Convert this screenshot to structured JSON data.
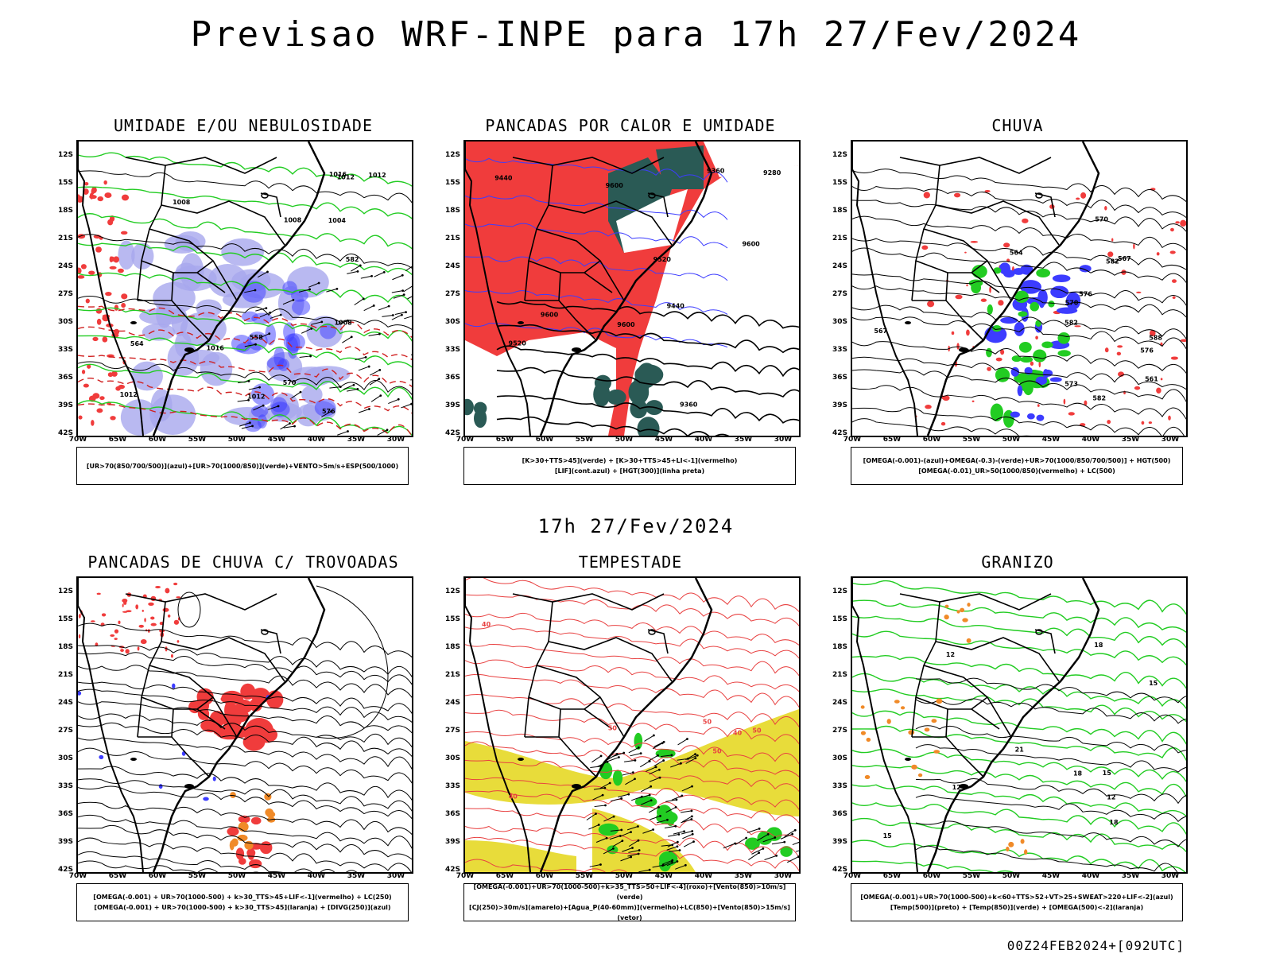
{
  "title": "Previsao WRF-INPE  para 17h 27/Fev/2024",
  "mid_date": "17h 27/Fev/2024",
  "footer_stamp": "00Z24FEB2024+[092UTC]",
  "lat_labels": [
    "12S",
    "15S",
    "18S",
    "21S",
    "24S",
    "27S",
    "30S",
    "33S",
    "36S",
    "39S",
    "42S"
  ],
  "lon_labels": [
    "70W",
    "65W",
    "60W",
    "55W",
    "50W",
    "45W",
    "40W",
    "35W",
    "30W"
  ],
  "colors": {
    "red": "#f03c3c",
    "blue": "#3c3cff",
    "green": "#22cc22",
    "lavender": "#a8a8ee",
    "teal": "#2a5a55",
    "yellow": "#e8dc3a",
    "orange": "#f08a28"
  },
  "panels": [
    {
      "id": "umidade",
      "title": "UMIDADE E/OU NEBULOSIDADE",
      "legend": [
        "[UR>70(850/700/500)](azul)+[UR>70(1000/850)](verde)+VENTO>5m/s+ESP(500/1000)"
      ],
      "contour_labels": [
        "1012",
        "1008",
        "1012",
        "1008",
        "1004",
        "1012",
        "1016",
        "576",
        "570",
        "564",
        "558",
        "1008",
        "1012",
        "1016",
        "582"
      ]
    },
    {
      "id": "pancadas-calor",
      "title": "PANCADAS POR CALOR E UMIDADE",
      "legend": [
        "[K>30+TTS>45](verde)  +  [K>30+TTS>45+LI<-1](vermelho)",
        "[LIF](cont.azul)  +  [HGT(300)](linha preta)"
      ],
      "contour_labels": [
        "9600",
        "9600",
        "9600",
        "9520",
        "9440",
        "9360",
        "9280",
        "9520",
        "9440",
        "9360",
        "9600"
      ]
    },
    {
      "id": "chuva",
      "title": "CHUVA",
      "legend": [
        "[OMEGA(-0.001)-(azul)+OMEGA(-0.3)-(verde)+UR>70(1000/850/700/500)]  +  HGT(500)",
        "[OMEGA(-0.01)_UR>50(1000/850)(vermelho)  +  LC(500)"
      ],
      "contour_labels": [
        "582",
        "588",
        "582",
        "576",
        "573",
        "570",
        "567",
        "564",
        "561",
        "582",
        "576",
        "570",
        "567"
      ]
    },
    {
      "id": "pancadas-trovoadas",
      "title": "PANCADAS DE CHUVA C/ TROVOADAS",
      "legend": [
        "[OMEGA(-0.001)  +  UR>70(1000-500)  +  k>30_TTS>45+LIF<-1](vermelho)  +  LC(250)",
        "[OMEGA(-0.001)  +  UR>70(1000-500)  +  k>30_TTS>45](laranja)  +  [DIVG(250)](azul)"
      ],
      "contour_labels": []
    },
    {
      "id": "tempestade",
      "title": "TEMPESTADE",
      "legend": [
        "[OMEGA(-0.001)+UR>70(1000-500)+k>35_TTS>50+LIF<-4](roxo)+[Vento(850)>10m/s](verde)",
        "[CJ(250)>30m/s](amarelo)+[Agua_P(40-60mm)](vermelho)+LC(850)+[Vento(850)>15m/s](vetor)"
      ],
      "contour_labels": [
        "50",
        "40",
        "50",
        "40",
        "50",
        "40",
        "50"
      ]
    },
    {
      "id": "granizo",
      "title": "GRANIZO",
      "legend": [
        "[OMEGA(-0.001)+UR>70(1000-500)+k<60+TTS>52+VT>25+SWEAT>220+LIF<-2](azul)",
        "[Temp(500)](preto)  +  [Temp(850)](verde)  +  [OMEGA(500)<-2](laranja)"
      ],
      "contour_labels": [
        "18",
        "15",
        "12",
        "12",
        "15",
        "18",
        "21",
        "18",
        "15",
        "12"
      ]
    }
  ]
}
